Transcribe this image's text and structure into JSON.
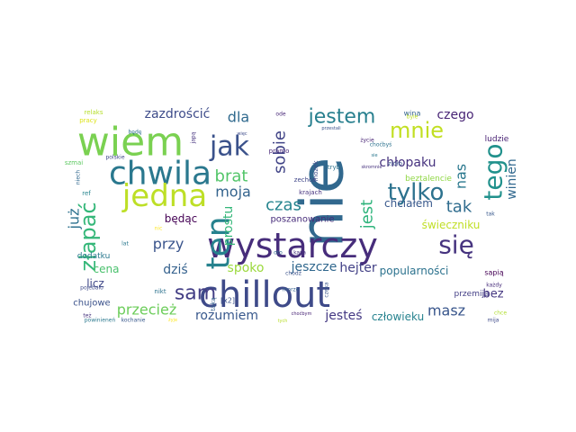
{
  "words": [
    {
      "text": "nie",
      "color": "#31688e",
      "rotate": true
    },
    {
      "text": "wiem",
      "color": "#7ad151",
      "rotate": false
    },
    {
      "text": "chillout",
      "color": "#3e4a89",
      "rotate": false
    },
    {
      "text": "wystarczy",
      "color": "#472d7b",
      "rotate": false
    },
    {
      "text": "chwila",
      "color": "#2a788e",
      "rotate": false
    },
    {
      "text": "ten",
      "color": "#26828e",
      "rotate": true
    },
    {
      "text": "jedna",
      "color": "#bddf26",
      "rotate": false
    },
    {
      "text": "jak",
      "color": "#3b528b",
      "rotate": false
    },
    {
      "text": "się",
      "color": "#46337f",
      "rotate": false
    },
    {
      "text": "tego",
      "color": "#21918c",
      "rotate": true
    },
    {
      "text": "tylko",
      "color": "#2c728e",
      "rotate": false
    },
    {
      "text": "złapać",
      "color": "#35b779",
      "rotate": true
    },
    {
      "text": "mnie",
      "color": "#c2df23",
      "rotate": false
    },
    {
      "text": "sam",
      "color": "#433e85",
      "rotate": false
    },
    {
      "text": "jestem",
      "color": "#277f8e",
      "rotate": false
    },
    {
      "text": "tak",
      "color": "#2f6c8e",
      "rotate": false
    },
    {
      "text": "czas",
      "color": "#25848e",
      "rotate": false
    },
    {
      "text": "brat",
      "color": "#52c569",
      "rotate": false
    },
    {
      "text": "jest",
      "color": "#2fb47c",
      "rotate": true
    },
    {
      "text": "sobie",
      "color": "#414487",
      "rotate": true
    },
    {
      "text": "dla",
      "color": "#306a8e",
      "rotate": false
    },
    {
      "text": "przy",
      "color": "#3a548c",
      "rotate": false
    },
    {
      "text": "nas",
      "color": "#2a788e",
      "rotate": true
    },
    {
      "text": "moja",
      "color": "#33638d",
      "rotate": false
    },
    {
      "text": "przecież",
      "color": "#6ccd5a",
      "rotate": false
    },
    {
      "text": "masz",
      "color": "#39568c",
      "rotate": false
    },
    {
      "text": "zazdrościć",
      "color": "#3e4c8a",
      "rotate": false
    },
    {
      "text": "dziś",
      "color": "#34618d",
      "rotate": false
    },
    {
      "text": "winien",
      "color": "#31688e",
      "rotate": true
    },
    {
      "text": "chłopaku",
      "color": "#46327e",
      "rotate": false
    },
    {
      "text": "jeszcze",
      "color": "#31688e",
      "rotate": false
    },
    {
      "text": "rozumiem",
      "color": "#38588c",
      "rotate": false
    },
    {
      "text": "jesteś",
      "color": "#443983",
      "rotate": false
    },
    {
      "text": "hejter",
      "color": "#424086",
      "rotate": false
    },
    {
      "text": "czego",
      "color": "#482475",
      "rotate": false
    },
    {
      "text": "spoko",
      "color": "#9bd93c",
      "rotate": false
    },
    {
      "text": "prostu",
      "color": "#35b779",
      "rotate": true
    },
    {
      "text": "już",
      "color": "#2d718e",
      "rotate": true
    },
    {
      "text": "cena",
      "color": "#4ac16d",
      "rotate": false
    },
    {
      "text": "bez",
      "color": "#453781",
      "rotate": false
    },
    {
      "text": "popularności",
      "color": "#2c728e",
      "rotate": false
    },
    {
      "text": "człowieku",
      "color": "#26828e",
      "rotate": false
    },
    {
      "text": "licz",
      "color": "#3f4788",
      "rotate": false
    },
    {
      "text": "świeczniku",
      "color": "#c0df25",
      "rotate": false
    },
    {
      "text": "chciałem",
      "color": "#38588c",
      "rotate": false
    },
    {
      "text": "będąc",
      "color": "#440154",
      "rotate": false
    },
    {
      "text": "poszanowanie",
      "color": "#472c7a",
      "rotate": false
    },
    {
      "text": "chujowe",
      "color": "#3b528b",
      "rotate": false
    },
    {
      "text": "dodatku",
      "color": "#2a788e",
      "rotate": false
    },
    {
      "text": "sapią",
      "color": "#440154",
      "rotate": false
    },
    {
      "text": "przemija",
      "color": "#433e85",
      "rotate": false
    },
    {
      "text": "beztalencie",
      "color": "#8fd744",
      "rotate": false
    },
    {
      "text": "ludzie",
      "color": "#482173",
      "rotate": false
    },
    {
      "text": "wina",
      "color": "#33638d",
      "rotate": false
    },
    {
      "text": "[x2]",
      "color": "#3b528b",
      "rotate": false
    },
    {
      "text": "taką",
      "color": "#355f8d",
      "rotate": true
    },
    {
      "text": "nikt",
      "color": "#2c728e",
      "rotate": false
    },
    {
      "text": "krajach",
      "color": "#46327e",
      "rotate": false
    },
    {
      "text": "zechce",
      "color": "#404688",
      "rotate": false
    },
    {
      "text": "tryb",
      "color": "#2d718e",
      "rotate": false
    },
    {
      "text": "pramo",
      "color": "#482878",
      "rotate": false
    },
    {
      "text": "mózek",
      "color": "#3d4e8a",
      "rotate": true
    },
    {
      "text": "relaks",
      "color": "#b5de2b",
      "rotate": false
    },
    {
      "text": "pracy",
      "color": "#dde318",
      "rotate": false
    },
    {
      "text": "szmai",
      "color": "#5ec962",
      "rotate": false
    },
    {
      "text": "polskie",
      "color": "#3f4788",
      "rotate": false
    },
    {
      "text": "japą",
      "color": "#46337f",
      "rotate": true
    },
    {
      "text": "niech",
      "color": "#31688e",
      "rotate": true
    },
    {
      "text": "ref",
      "color": "#25848e",
      "rotate": false
    },
    {
      "text": "pojebało",
      "color": "#3e4a89",
      "rotate": false
    },
    {
      "text": "lat",
      "color": "#2a788e",
      "rotate": false
    },
    {
      "text": "powinieneń",
      "color": "#2a788e",
      "rotate": false
    },
    {
      "text": "też",
      "color": "#46337f",
      "rotate": false
    },
    {
      "text": "kochanie",
      "color": "#38588c",
      "rotate": false
    },
    {
      "text": "żyje",
      "color": "#fde725",
      "rotate": false
    },
    {
      "text": "tych",
      "color": "#b8de29",
      "rotate": false
    },
    {
      "text": "choćbym",
      "color": "#482475",
      "rotate": false
    },
    {
      "text": "chce",
      "color": "#b0dd2f",
      "rotate": false
    },
    {
      "text": "mija",
      "color": "#3e4a89",
      "rotate": false
    },
    {
      "text": "czeka",
      "color": "#39568c",
      "rotate": true
    },
    {
      "text": "oto",
      "color": "#31688e",
      "rotate": false
    },
    {
      "text": "kasa",
      "color": "#46327e",
      "rotate": false
    },
    {
      "text": "morze",
      "color": "#355f8d",
      "rotate": false
    },
    {
      "text": "chodź",
      "color": "#3b528b",
      "rotate": false
    },
    {
      "text": "nic",
      "color": "#fde725",
      "rotate": false
    },
    {
      "text": "będę",
      "color": "#2e6e8e",
      "rotate": false
    },
    {
      "text": "ode",
      "color": "#482878",
      "rotate": false
    },
    {
      "text": "więc",
      "color": "#3e4c8a",
      "rotate": false
    },
    {
      "text": "sie",
      "color": "#2a788e",
      "rotate": false
    },
    {
      "text": "życie",
      "color": "#482475",
      "rotate": false
    },
    {
      "text": "zioło",
      "color": "#3b528b",
      "rotate": false
    },
    {
      "text": "choćbyś",
      "color": "#2c728e",
      "rotate": false
    },
    {
      "text": "byle",
      "color": "#bddf26",
      "rotate": false
    },
    {
      "text": "przestali",
      "color": "#3b528b",
      "rotate": false
    },
    {
      "text": "skromnie",
      "color": "#46327e",
      "rotate": false
    },
    {
      "text": "każdy",
      "color": "#472d7b",
      "rotate": false
    },
    {
      "text": "tak",
      "color": "#38588c",
      "rotate": false
    }
  ]
}
